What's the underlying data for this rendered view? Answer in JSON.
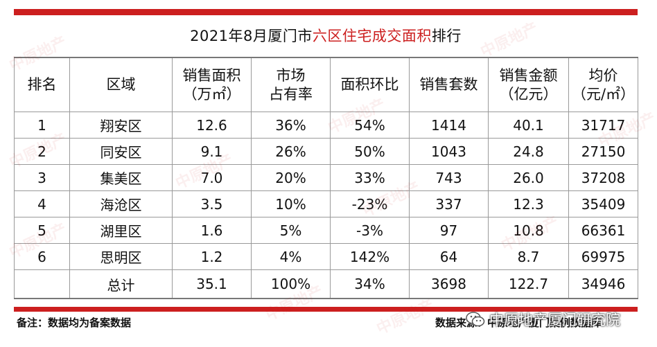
{
  "title": {
    "prefix": "2021年8月厦门市",
    "highlight": "六区住宅成交面积",
    "suffix": "排行"
  },
  "headers": [
    [
      "排名"
    ],
    [
      "区域"
    ],
    [
      "销售面积",
      "（万㎡）"
    ],
    [
      "市场",
      "占有率"
    ],
    [
      "面积环比"
    ],
    [
      "销售套数"
    ],
    [
      "销售金额",
      "（亿元）"
    ],
    [
      "均价",
      "（元/㎡）"
    ]
  ],
  "rows": [
    [
      "1",
      "翔安区",
      "12.6",
      "36%",
      "54%",
      "1414",
      "40.1",
      "31717"
    ],
    [
      "2",
      "同安区",
      "9.1",
      "26%",
      "50%",
      "1043",
      "24.8",
      "27150"
    ],
    [
      "3",
      "集美区",
      "7.0",
      "20%",
      "33%",
      "743",
      "26.0",
      "37208"
    ],
    [
      "4",
      "海沧区",
      "3.5",
      "10%",
      "-23%",
      "337",
      "12.3",
      "35409"
    ],
    [
      "5",
      "湖里区",
      "1.6",
      "5%",
      "-3%",
      "97",
      "10.8",
      "66361"
    ],
    [
      "6",
      "思明区",
      "1.2",
      "4%",
      "142%",
      "64",
      "8.7",
      "69975"
    ]
  ],
  "total": [
    "",
    "总计",
    "35.1",
    "100%",
    "34%",
    "3698",
    "122.7",
    "34946"
  ],
  "footer": {
    "note": "备注：数据均为备案数据",
    "source": "数据来源：中原地产厦门案例数据库"
  },
  "wechat_account": "中原地产厦门研究院",
  "watermark_text": "中原地产",
  "colors": {
    "accent_red": "#cc1f1f",
    "border": "#999999"
  },
  "icons": {
    "wechat": "wechat-icon"
  }
}
